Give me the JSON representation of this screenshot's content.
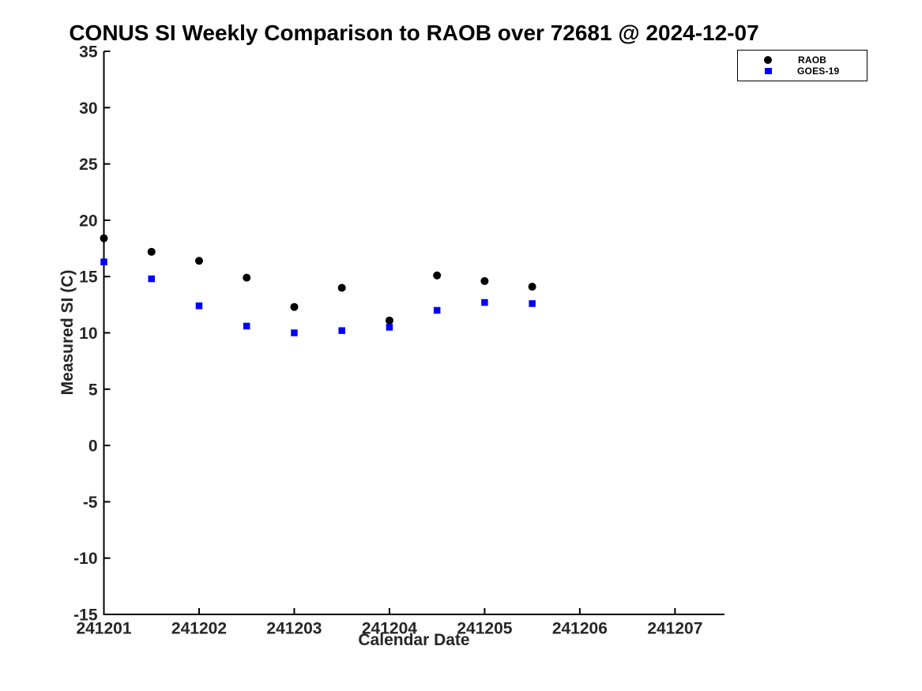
{
  "chart_data": {
    "type": "scatter",
    "title": "CONUS SI Weekly Comparison to RAOB over 72681 @ 2024-12-07",
    "xlabel": "Calendar Date",
    "ylabel": "Measured SI (C)",
    "x": [
      241201.0,
      241201.5,
      241202.0,
      241202.5,
      241203.0,
      241203.5,
      241204.0,
      241204.5,
      241205.0,
      241205.5
    ],
    "series": [
      {
        "name": "RAOB",
        "marker": "circle",
        "color": "#000000",
        "values": [
          18.4,
          17.2,
          16.4,
          14.9,
          12.3,
          14.0,
          11.1,
          15.1,
          14.6,
          14.1
        ]
      },
      {
        "name": "GOES-19",
        "marker": "square",
        "color": "#0000ff",
        "values": [
          16.3,
          14.8,
          12.4,
          10.6,
          10.0,
          10.2,
          10.5,
          12.0,
          12.7,
          12.6
        ]
      }
    ],
    "xlim": [
      241201,
      241207.52
    ],
    "ylim": [
      -15,
      35
    ],
    "xtick_values": [
      241201,
      241202,
      241203,
      241204,
      241205,
      241206,
      241207
    ],
    "xtick_labels": [
      "241201",
      "241202",
      "241203",
      "241204",
      "241205",
      "241206",
      "241207"
    ],
    "ytick_values": [
      -15,
      -10,
      -5,
      0,
      5,
      10,
      15,
      20,
      25,
      30,
      35
    ],
    "ytick_labels": [
      "-15",
      "-10",
      "-5",
      "0",
      "5",
      "10",
      "15",
      "20",
      "25",
      "30",
      "35"
    ],
    "grid": false,
    "legend_position": "top-right"
  }
}
